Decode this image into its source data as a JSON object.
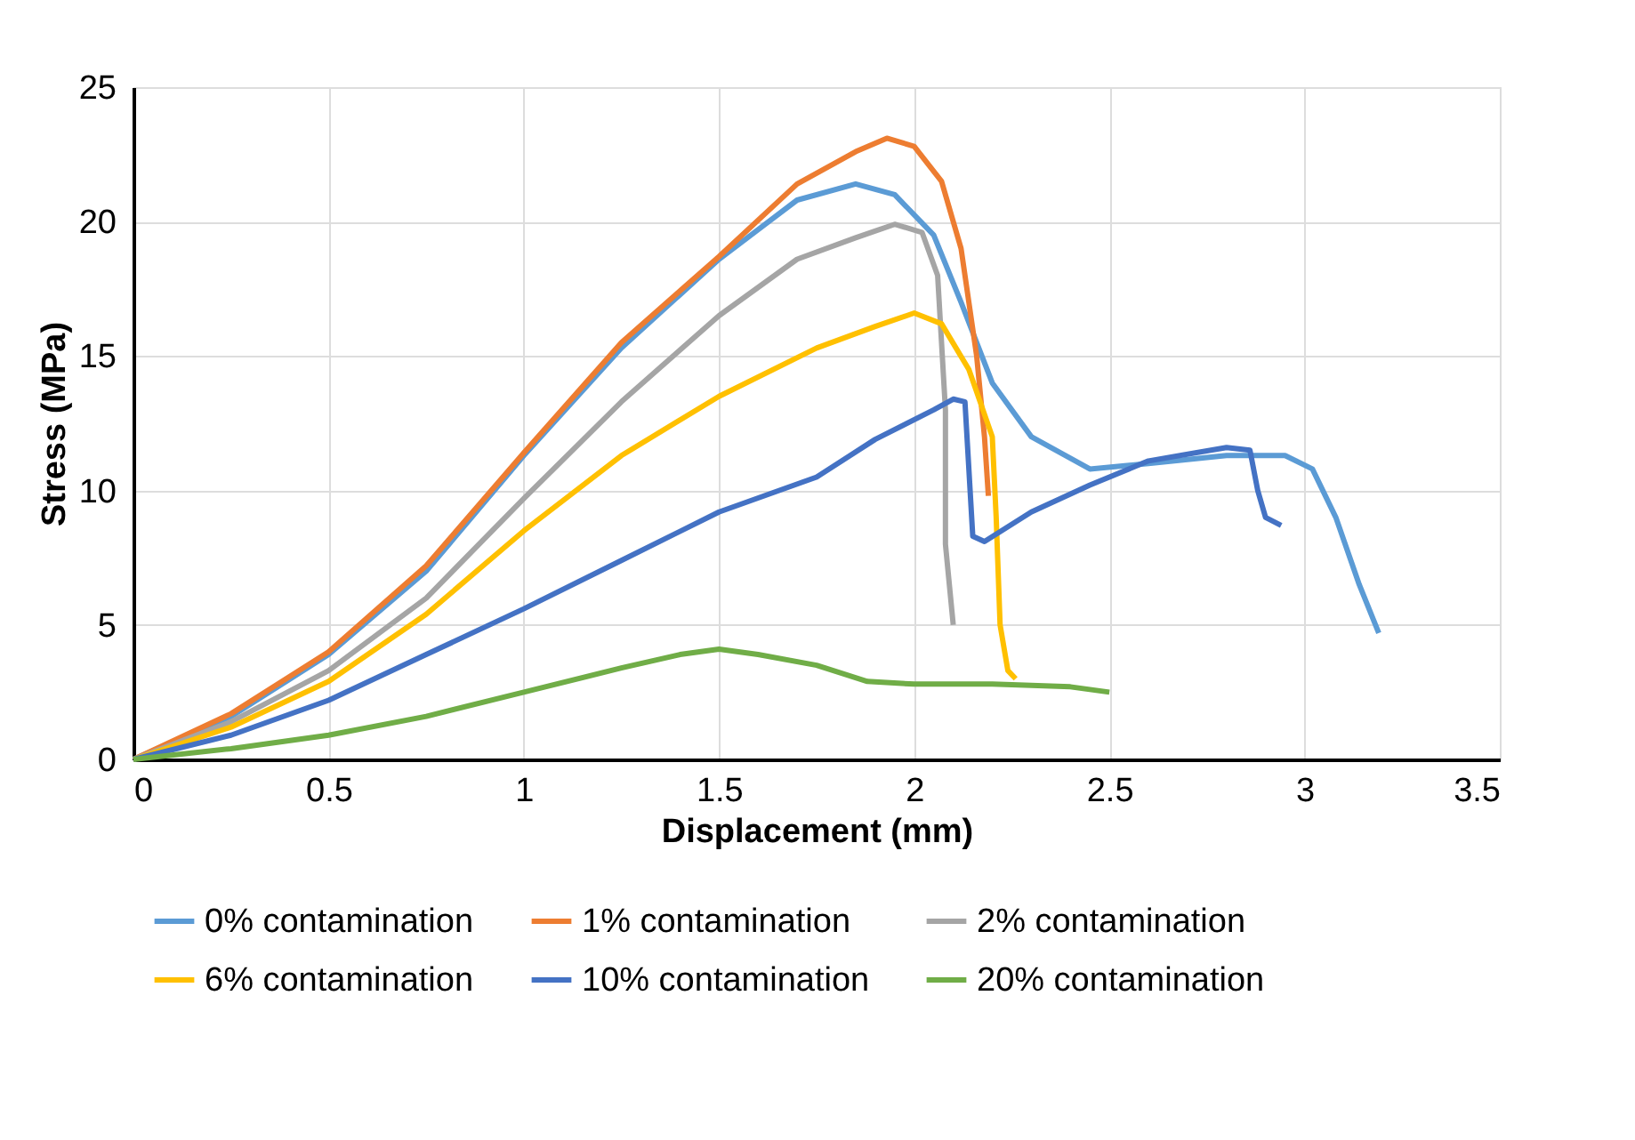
{
  "chart_data": {
    "type": "line",
    "xlabel": "Displacement (mm)",
    "ylabel": "Stress (MPa)",
    "xlim": [
      0,
      3.5
    ],
    "ylim": [
      0,
      25
    ],
    "xticks": [
      0,
      0.5,
      1,
      1.5,
      2,
      2.5,
      3,
      3.5
    ],
    "yticks": [
      0,
      5,
      10,
      15,
      20,
      25
    ],
    "grid": true,
    "legend": "bottom",
    "marker": "none",
    "line_style": "solid",
    "series": [
      {
        "name": "0% contamination",
        "color": "#5b9bd5",
        "x": [
          0,
          0.25,
          0.5,
          0.75,
          1,
          1.25,
          1.5,
          1.7,
          1.85,
          1.95,
          2.05,
          2.12,
          2.2,
          2.3,
          2.45,
          2.6,
          2.8,
          2.95,
          3.02,
          3.08,
          3.14,
          3.19
        ],
        "values": [
          0,
          1.6,
          3.9,
          7,
          11.3,
          15.3,
          18.6,
          20.8,
          21.4,
          21,
          19.5,
          17,
          14,
          12,
          10.8,
          11,
          11.3,
          11.3,
          10.8,
          9,
          6.5,
          4.7
        ]
      },
      {
        "name": "1% contamination",
        "color": "#ed7d31",
        "x": [
          0,
          0.25,
          0.5,
          0.75,
          1,
          1.25,
          1.5,
          1.7,
          1.85,
          1.93,
          2.0,
          2.07,
          2.12,
          2.16,
          2.18,
          2.19
        ],
        "values": [
          0,
          1.7,
          4,
          7.2,
          11.4,
          15.5,
          18.7,
          21.4,
          22.6,
          23.1,
          22.8,
          21.5,
          19,
          15,
          12,
          9.8
        ]
      },
      {
        "name": "2% contamination",
        "color": "#a5a5a5",
        "x": [
          0,
          0.25,
          0.5,
          0.75,
          1,
          1.25,
          1.5,
          1.7,
          1.85,
          1.95,
          2.02,
          2.06,
          2.08,
          2.08,
          2.1
        ],
        "values": [
          0,
          1.4,
          3.3,
          6,
          9.7,
          13.3,
          16.5,
          18.6,
          19.4,
          19.9,
          19.6,
          18,
          13,
          8,
          5
        ]
      },
      {
        "name": "6% contamination",
        "color": "#ffc000",
        "x": [
          0,
          0.25,
          0.5,
          0.75,
          1,
          1.25,
          1.5,
          1.75,
          1.9,
          2.0,
          2.07,
          2.14,
          2.2,
          2.21,
          2.22,
          2.24,
          2.26
        ],
        "values": [
          0,
          1.2,
          2.9,
          5.4,
          8.5,
          11.3,
          13.5,
          15.3,
          16.1,
          16.6,
          16.2,
          14.5,
          12,
          9,
          5,
          3.3,
          3
        ]
      },
      {
        "name": "10% contamination",
        "color": "#4472c4",
        "x": [
          0,
          0.25,
          0.5,
          0.75,
          1,
          1.25,
          1.5,
          1.75,
          1.9,
          2.05,
          2.1,
          2.13,
          2.15,
          2.18,
          2.3,
          2.45,
          2.6,
          2.8,
          2.86,
          2.88,
          2.9,
          2.94
        ],
        "values": [
          0,
          0.9,
          2.2,
          3.9,
          5.6,
          7.4,
          9.2,
          10.5,
          11.9,
          13,
          13.4,
          13.3,
          8.3,
          8.1,
          9.2,
          10.2,
          11.1,
          11.6,
          11.5,
          10,
          9,
          8.7
        ]
      },
      {
        "name": "20% contamination",
        "color": "#70ad47",
        "x": [
          0,
          0.25,
          0.5,
          0.75,
          1,
          1.25,
          1.4,
          1.5,
          1.6,
          1.75,
          1.88,
          2.0,
          2.2,
          2.4,
          2.5
        ],
        "values": [
          0,
          0.4,
          0.9,
          1.6,
          2.5,
          3.4,
          3.9,
          4.1,
          3.9,
          3.5,
          2.9,
          2.8,
          2.8,
          2.7,
          2.5
        ]
      }
    ]
  }
}
